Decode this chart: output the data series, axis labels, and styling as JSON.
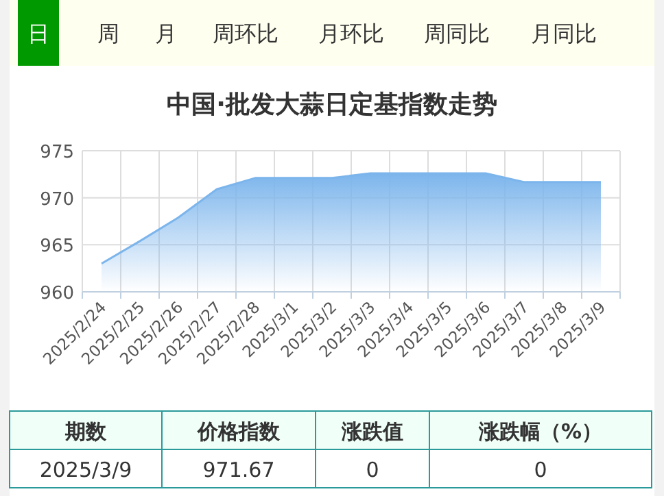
{
  "chart_data": [
    {
      "type": "other",
      "annotations": [
        "日",
        "周",
        "月",
        "周环比",
        "月环比",
        "周同比",
        "月同比"
      ]
    },
    {
      "type": "area",
      "title": "中国·批发大蒜日定基指数走势",
      "categories": [
        "2025/2/24",
        "2025/2/25",
        "2025/2/26",
        "2025/2/27",
        "2025/2/28",
        "2025/3/1",
        "2025/3/2",
        "2025/3/3",
        "2025/3/4",
        "2025/3/5",
        "2025/3/6",
        "2025/3/7",
        "2025/3/8",
        "2025/3/9"
      ],
      "series": [
        {
          "color": "#7cb5ec",
          "values": [
            963.0,
            965.4,
            967.9,
            970.9,
            972.1,
            972.1,
            972.1,
            972.6,
            972.6,
            972.6,
            972.6,
            971.67,
            971.67,
            971.67
          ]
        }
      ],
      "ylim": [
        960,
        975
      ],
      "yticks": [
        960,
        965,
        970,
        975
      ],
      "grid": true
    },
    {
      "type": "other",
      "annotations": [
        "期数",
        "价格指数",
        "涨跌值",
        "涨跌幅（%）",
        "2025/3/9",
        "971.67",
        "0",
        "0"
      ]
    }
  ]
}
